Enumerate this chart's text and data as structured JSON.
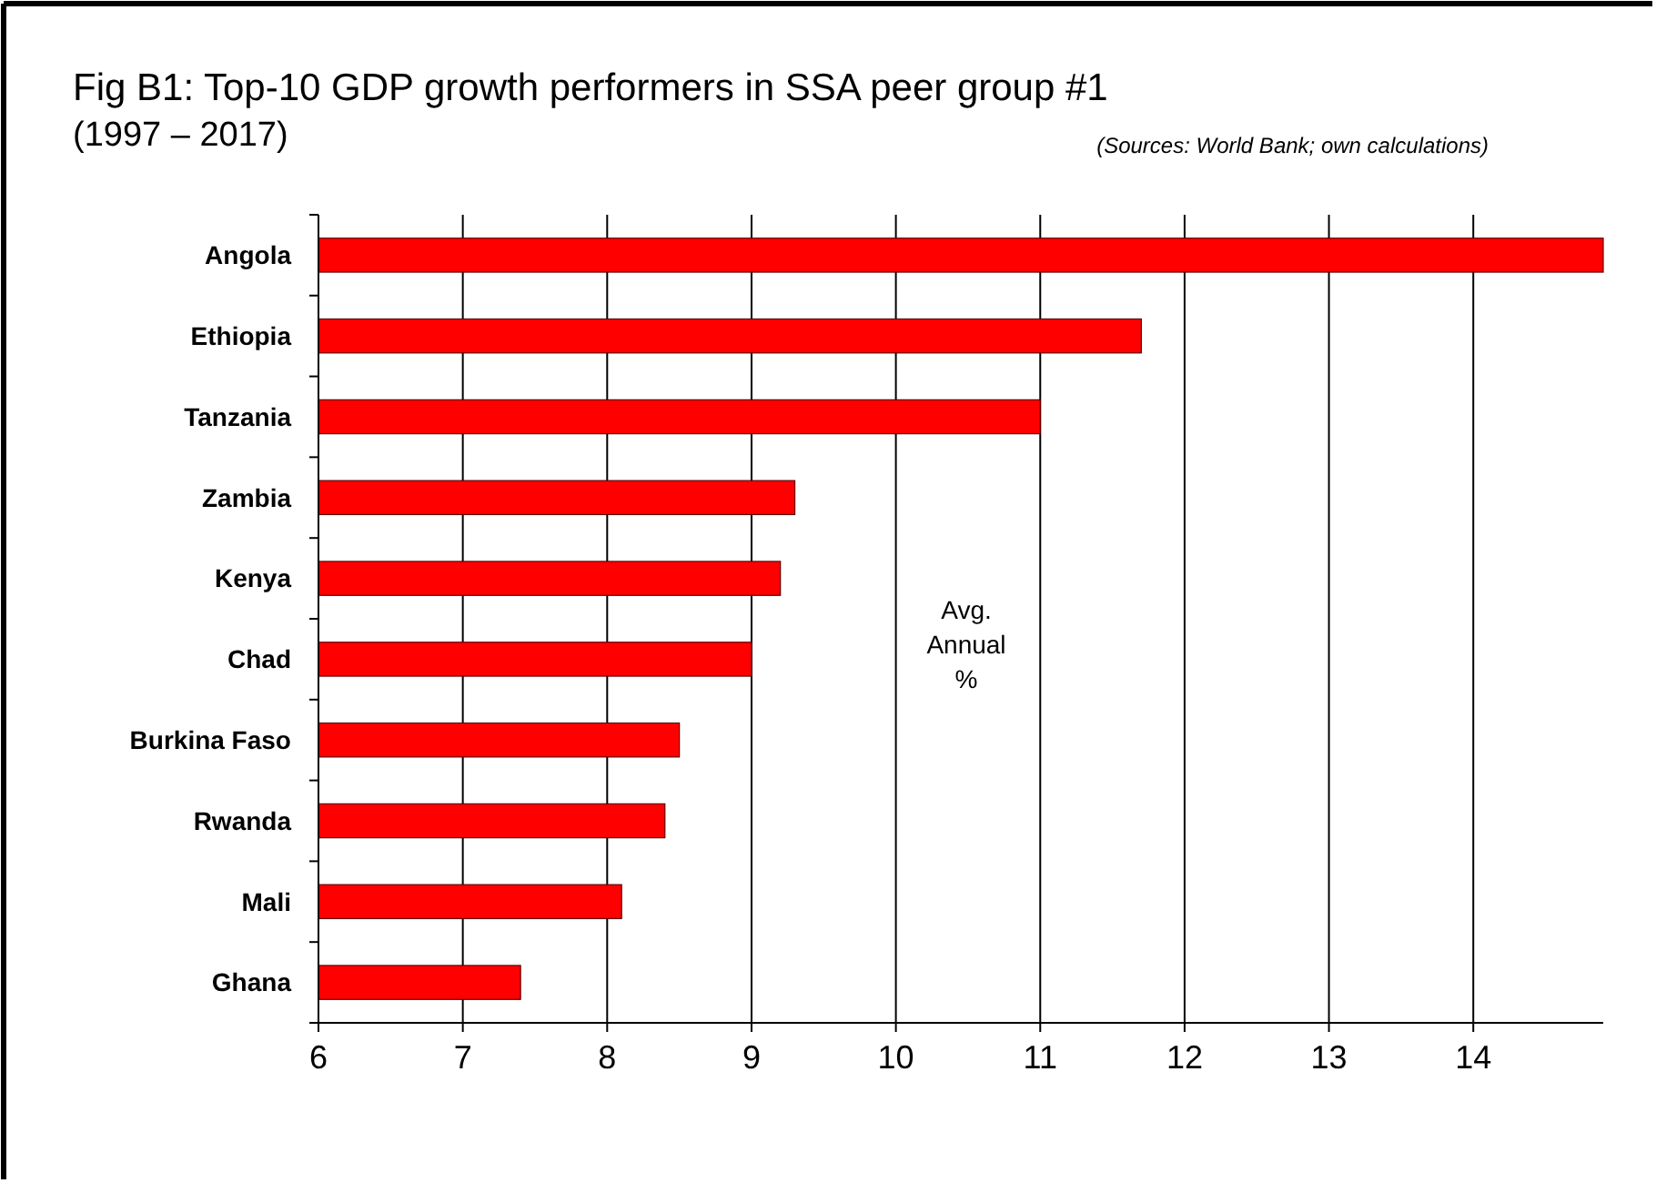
{
  "chart_data": {
    "type": "bar",
    "orientation": "horizontal",
    "title": "Fig B1: Top-10 GDP growth performers in SSA peer group #1",
    "subtitle": "(1997 – 2017)",
    "categories": [
      "Angola",
      "Ethiopia",
      "Tanzania",
      "Zambia",
      "Kenya",
      "Chad",
      "Burkina Faso",
      "Rwanda",
      "Mali",
      "Ghana"
    ],
    "values": [
      14.9,
      11.7,
      11.0,
      9.3,
      9.2,
      9.0,
      8.5,
      8.4,
      8.1,
      7.4
    ],
    "color": "#ff0000",
    "xlim": [
      6,
      14.9
    ],
    "xticks": [
      6,
      7,
      8,
      9,
      10,
      11,
      12,
      13,
      14
    ],
    "grid": "x",
    "annotations": [
      "(Sources: World Bank; own calculations)",
      "Avg. Annual %"
    ]
  }
}
